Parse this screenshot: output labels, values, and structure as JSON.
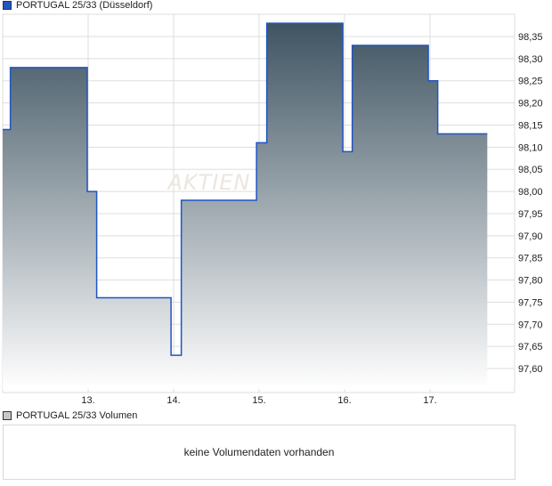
{
  "legend": {
    "price_series": "PORTUGAL 25/33 (Düsseldorf)",
    "volume_series": "PORTUGAL 25/33 Volumen"
  },
  "volume_message": "keine Volumendaten vorhanden",
  "watermark": "AKTIEN",
  "colors": {
    "line": "#1f55c4",
    "fill_top": "#3f5462",
    "fill_bottom": "#ffffff",
    "grid": "#dddddd",
    "volume_swatch": "#c8c8c8"
  },
  "chart_data": {
    "type": "area",
    "step": true,
    "xlim": [
      12.0,
      18.0
    ],
    "ylim": [
      97.55,
      98.4
    ],
    "grid": true,
    "x_ticks": [
      13,
      14,
      15,
      16,
      17
    ],
    "x_tick_labels": [
      "13.",
      "14.",
      "15.",
      "16.",
      "17."
    ],
    "y_ticks": [
      97.6,
      97.65,
      97.7,
      97.75,
      97.8,
      97.85,
      97.9,
      97.95,
      98.0,
      98.05,
      98.1,
      98.15,
      98.2,
      98.25,
      98.3,
      98.35
    ],
    "y_tick_labels": [
      "97,60",
      "97,65",
      "97,70",
      "97,75",
      "97,80",
      "97,85",
      "97,90",
      "97,95",
      "98,00",
      "98,05",
      "98,10",
      "98,15",
      "98,20",
      "98,25",
      "98,30",
      "98,35"
    ],
    "series": [
      {
        "x": [
          12.0,
          12.09,
          12.99,
          13.1,
          13.97,
          14.09,
          14.97,
          15.09,
          15.98,
          16.09,
          16.98,
          17.09,
          17.67
        ],
        "y": [
          98.14,
          98.28,
          98.0,
          97.76,
          97.63,
          97.98,
          98.11,
          98.38,
          98.09,
          98.33,
          98.25,
          98.13,
          98.13
        ]
      }
    ]
  }
}
